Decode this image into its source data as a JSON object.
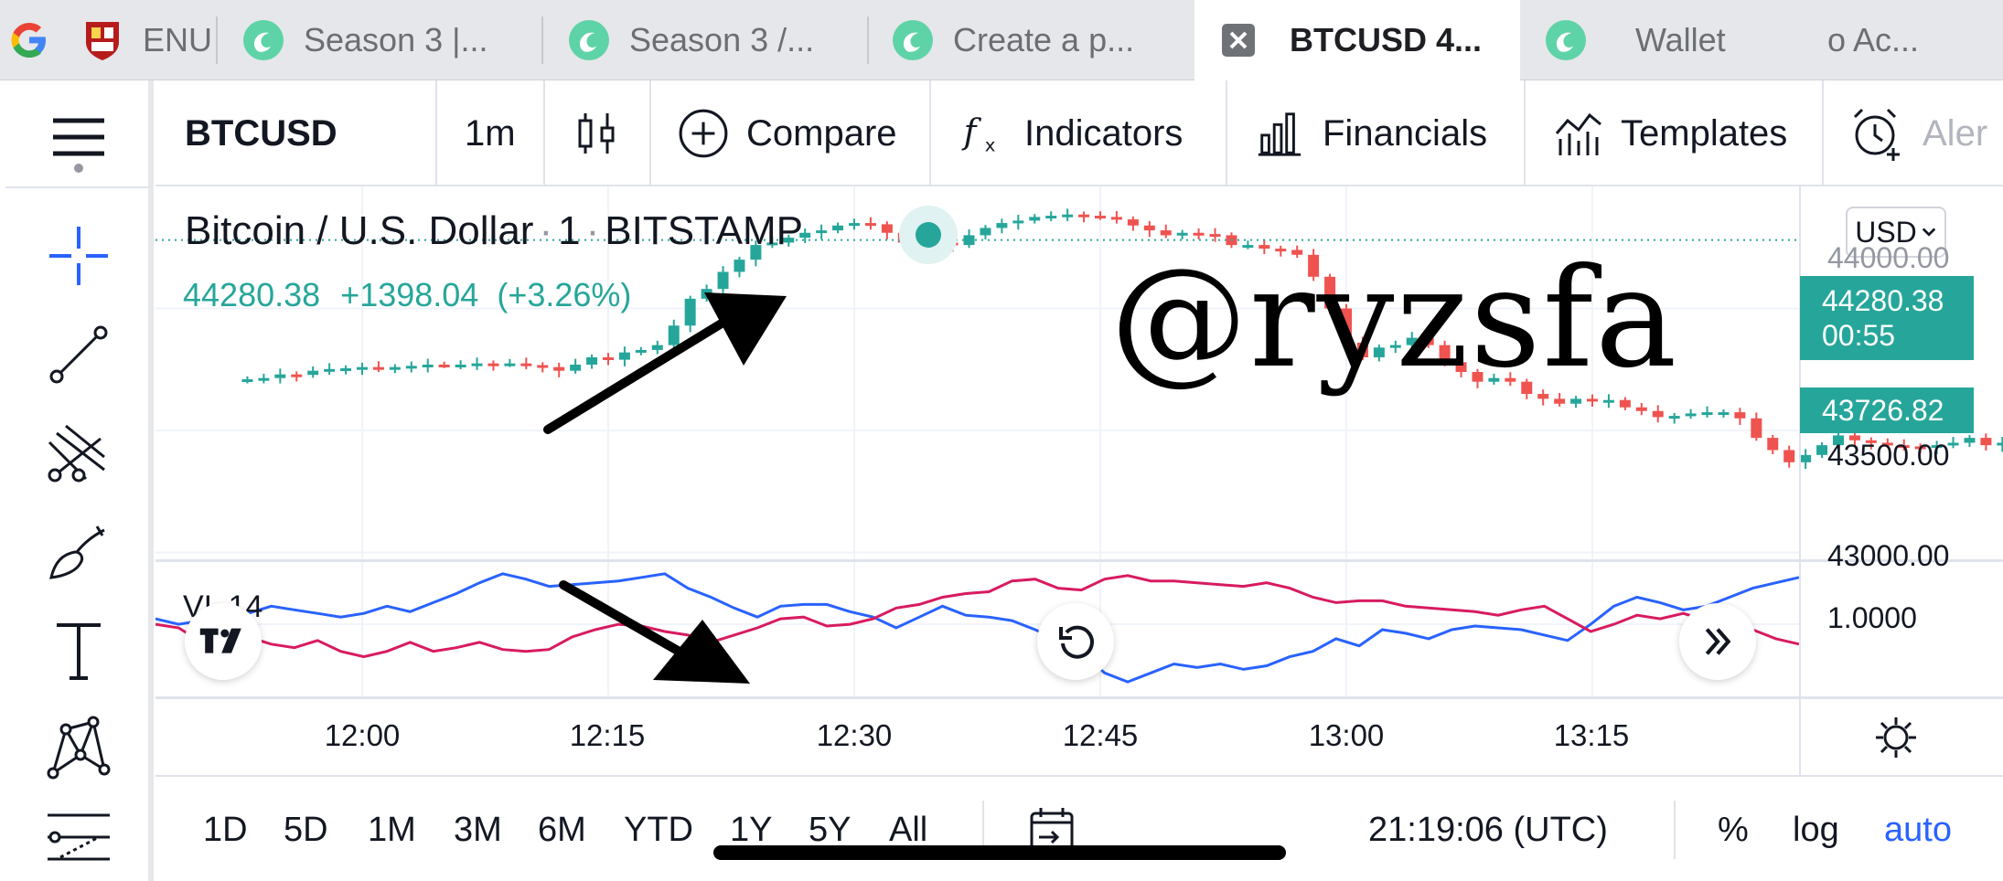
{
  "browser": {
    "tabs": [
      {
        "label": "ENU",
        "icon": "crest-icon",
        "active": false
      },
      {
        "label": "Season 3 |...",
        "icon": "steemit-icon",
        "active": false
      },
      {
        "label": "Season 3 /...",
        "icon": "steemit-icon",
        "active": false
      },
      {
        "label": "Create a p...",
        "icon": "steemit-icon",
        "active": false
      },
      {
        "label": "BTCUSD 4...",
        "icon": "close-icon",
        "active": true
      },
      {
        "label": "Wallet",
        "icon": "steemit-icon",
        "active": false
      },
      {
        "label": "o Ac...",
        "icon": "",
        "active": false
      }
    ]
  },
  "toolbar": {
    "symbol": "BTCUSD",
    "interval": "1m",
    "compare": "Compare",
    "indicators": "Indicators",
    "financials": "Financials",
    "templates": "Templates",
    "alerts": "Aler"
  },
  "legend": {
    "name": "Bitcoin / U.S. Dollar",
    "interval": "1",
    "exchange": "BITSTAMP",
    "last": "44280.38",
    "change": "+1398.04",
    "change_pct": "(+3.26%)"
  },
  "price_axis": {
    "currency": "USD",
    "labels": [
      "44000.00",
      "43500.00",
      "43000.00"
    ],
    "last_price_label": "44280.38",
    "countdown": "00:55",
    "marker_label": "43726.82"
  },
  "indicator": {
    "name": "VI",
    "length": "14",
    "axis_label": "1.0000"
  },
  "time_axis": {
    "labels": [
      "12:00",
      "12:15",
      "12:30",
      "12:45",
      "13:00",
      "13:15"
    ],
    "bold": [
      true,
      false,
      false,
      false,
      true,
      false
    ]
  },
  "bottom": {
    "ranges": [
      "1D",
      "5D",
      "1M",
      "3M",
      "6M",
      "YTD",
      "1Y",
      "5Y",
      "All"
    ],
    "clock": "21:19:06 (UTC)",
    "percent": "%",
    "log": "log",
    "auto": "auto"
  },
  "watermark": "@ryzsfa",
  "colors": {
    "up": "#26a69a",
    "down": "#ef5350",
    "vi_plus": "#2962ff",
    "vi_minus": "#d81b60",
    "accent": "#2962ff"
  },
  "chart_data": [
    {
      "type": "candlestick",
      "title": "Bitcoin / U.S. Dollar · 1 · BITSTAMP",
      "interval_minutes": 1,
      "x_range": [
        "11:53",
        "13:29"
      ],
      "y_range": [
        42980,
        44500
      ],
      "last_price": 44280.38,
      "marked_price": 43726.82,
      "close": [
        43710,
        43715,
        43730,
        43728,
        43745,
        43752,
        43755,
        43760,
        43752,
        43760,
        43765,
        43770,
        43768,
        43770,
        43775,
        43772,
        43775,
        43768,
        43760,
        43745,
        43770,
        43800,
        43790,
        43820,
        43830,
        43850,
        43930,
        44040,
        44080,
        44150,
        44200,
        44260,
        44270,
        44290,
        44310,
        44320,
        44340,
        44350,
        44345,
        44310,
        44270,
        44280,
        44270,
        44260,
        44300,
        44330,
        44350,
        44360,
        44375,
        44380,
        44385,
        44380,
        44375,
        44365,
        44340,
        44320,
        44300,
        44310,
        44305,
        44300,
        44260,
        44260,
        44245,
        44240,
        44220,
        44130,
        44000,
        43860,
        43800,
        43840,
        43850,
        43880,
        43850,
        43780,
        43740,
        43700,
        43715,
        43700,
        43650,
        43630,
        43610,
        43630,
        43620,
        43625,
        43595,
        43580,
        43555,
        43560,
        43570,
        43575,
        43575,
        43550,
        43470,
        43420,
        43370,
        43400,
        43440,
        43480,
        43460,
        43450,
        43440,
        43435,
        43430,
        43440,
        43450,
        43470,
        43440,
        43450,
        43480,
        43490,
        43500,
        43490,
        43480,
        43470,
        43475,
        43490,
        43495,
        43500,
        43510,
        43540,
        43580,
        43620,
        43650,
        43690
      ]
    },
    {
      "type": "line",
      "title": "VI 14",
      "y_range": [
        0.6,
        1.35
      ],
      "axis_label_value": 1.0,
      "series": [
        {
          "name": "VI+",
          "color": "#2962ff",
          "values": [
            1.03,
            1.0,
            1.02,
            1.04,
            1.06,
            1.1,
            1.08,
            1.06,
            1.04,
            1.06,
            1.1,
            1.07,
            1.12,
            1.17,
            1.23,
            1.28,
            1.25,
            1.21,
            1.22,
            1.23,
            1.24,
            1.26,
            1.28,
            1.2,
            1.15,
            1.09,
            1.04,
            1.1,
            1.11,
            1.11,
            1.07,
            1.04,
            0.98,
            1.04,
            1.1,
            1.05,
            1.04,
            1.02,
            0.97,
            0.91,
            0.85,
            0.73,
            0.68,
            0.73,
            0.78,
            0.76,
            0.78,
            0.75,
            0.77,
            0.82,
            0.85,
            0.92,
            0.88,
            0.97,
            0.95,
            0.92,
            0.97,
            0.99,
            0.98,
            0.97,
            0.94,
            0.91,
            1.0,
            1.1,
            1.15,
            1.12,
            1.08,
            1.1,
            1.15,
            1.2,
            1.23,
            1.26
          ]
        },
        {
          "name": "VI-",
          "color": "#d81b60",
          "values": [
            1.0,
            0.98,
            0.9,
            0.85,
            0.93,
            0.89,
            0.87,
            0.91,
            0.85,
            0.82,
            0.85,
            0.9,
            0.85,
            0.87,
            0.9,
            0.86,
            0.85,
            0.86,
            0.93,
            0.97,
            1.0,
            0.99,
            0.96,
            0.94,
            0.9,
            0.94,
            0.98,
            1.03,
            1.04,
            0.99,
            1.0,
            1.03,
            1.09,
            1.11,
            1.15,
            1.17,
            1.18,
            1.24,
            1.25,
            1.2,
            1.19,
            1.25,
            1.27,
            1.24,
            1.24,
            1.23,
            1.22,
            1.21,
            1.23,
            1.2,
            1.15,
            1.12,
            1.13,
            1.13,
            1.1,
            1.09,
            1.08,
            1.07,
            1.05,
            1.08,
            1.1,
            1.03,
            0.96,
            1.0,
            1.05,
            1.03,
            1.06,
            1.02,
            1.0,
            0.97,
            0.92,
            0.89
          ]
        }
      ]
    }
  ]
}
